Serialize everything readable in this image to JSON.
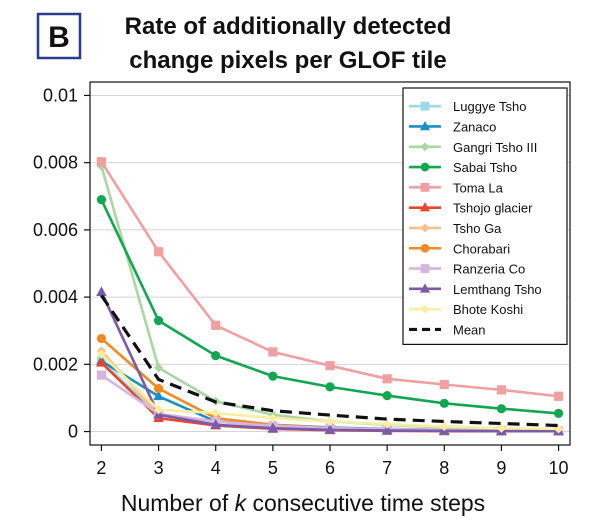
{
  "panel_label": "B",
  "chart_data": {
    "type": "line",
    "title": [
      "Rate of additionally detected",
      "change pixels per GLOF tile"
    ],
    "xlabel_parts": [
      "Number of ",
      "k",
      " consecutive time steps"
    ],
    "ylabel": "",
    "x": [
      2,
      3,
      4,
      5,
      6,
      7,
      8,
      9,
      10
    ],
    "xlim": [
      1.8,
      10.2
    ],
    "ylim": [
      -0.0004,
      0.0104
    ],
    "y_ticks": [
      0,
      0.002,
      0.004,
      0.006,
      0.008,
      0.01
    ],
    "y_tick_labels": [
      "0",
      "0.002",
      "0.004",
      "0.006",
      "0.008",
      "0.01"
    ],
    "x_tick_labels": [
      "2",
      "3",
      "4",
      "5",
      "6",
      "7",
      "8",
      "9",
      "10"
    ],
    "grid": "horizontal",
    "legend_position": "top-right",
    "series": [
      {
        "name": "Luggye Tsho",
        "color": "#9ed9e8",
        "marker": "square",
        "dashed": false,
        "values": [
          0.0021,
          0.0005,
          0.0002,
          0.0001,
          6e-05,
          4e-05,
          2e-05,
          1e-05,
          1e-05
        ]
      },
      {
        "name": "Zanaco",
        "color": "#1a8fc6",
        "marker": "triangle",
        "dashed": false,
        "values": [
          0.0021,
          0.00105,
          0.0003,
          0.0002,
          0.00012,
          8e-05,
          5e-05,
          3e-05,
          2e-05
        ]
      },
      {
        "name": "Gangri Tsho III",
        "color": "#a8d8a0",
        "marker": "diamond",
        "dashed": false,
        "values": [
          0.0079,
          0.0019,
          0.0009,
          0.0005,
          0.0003,
          0.0002,
          0.00012,
          8e-05,
          5e-05
        ]
      },
      {
        "name": "Sabai Tsho",
        "color": "#13a651",
        "marker": "circle",
        "dashed": false,
        "values": [
          0.0069,
          0.0033,
          0.00226,
          0.00165,
          0.00133,
          0.00107,
          0.00084,
          0.00068,
          0.00054
        ]
      },
      {
        "name": "Toma La",
        "color": "#f0a0a0",
        "marker": "square",
        "dashed": false,
        "values": [
          0.00803,
          0.00535,
          0.00316,
          0.00237,
          0.00196,
          0.00157,
          0.0014,
          0.00124,
          0.00105
        ]
      },
      {
        "name": "Tshojo glacier",
        "color": "#e8452c",
        "marker": "triangle",
        "dashed": false,
        "values": [
          0.00205,
          0.0004,
          0.00018,
          8e-05,
          4e-05,
          2e-05,
          1e-05,
          1e-05,
          1e-05
        ]
      },
      {
        "name": "Tsho Ga",
        "color": "#f5c08a",
        "marker": "diamond",
        "dashed": false,
        "values": [
          0.0024,
          0.0005,
          0.0003,
          0.00015,
          0.0001,
          6e-05,
          4e-05,
          2e-05,
          1e-05
        ]
      },
      {
        "name": "Chorabari",
        "color": "#f08a24",
        "marker": "circle",
        "dashed": false,
        "values": [
          0.00277,
          0.00128,
          0.0004,
          0.0002,
          0.0001,
          5e-05,
          3e-05,
          2e-05,
          1e-05
        ]
      },
      {
        "name": "Ranzeria Co",
        "color": "#d4b4e0",
        "marker": "square",
        "dashed": false,
        "values": [
          0.00168,
          0.00053,
          0.0003,
          0.00017,
          0.0001,
          7e-05,
          5e-05,
          3e-05,
          2e-05
        ]
      },
      {
        "name": "Lemthang Tsho",
        "color": "#7b5aa8",
        "marker": "triangle",
        "dashed": false,
        "values": [
          0.00415,
          0.0005,
          0.0002,
          0.0001,
          5e-05,
          3e-05,
          2e-05,
          1e-05,
          1e-05
        ]
      },
      {
        "name": "Bhote Koshi",
        "color": "#f7eea0",
        "marker": "diamond",
        "dashed": false,
        "values": [
          0.0023,
          0.00065,
          0.00055,
          0.0004,
          0.0003,
          0.00022,
          0.00015,
          0.0001,
          8e-05
        ]
      },
      {
        "name": "Mean",
        "color": "#111111",
        "marker": "none",
        "dashed": true,
        "values": [
          0.00405,
          0.00155,
          0.00088,
          0.00062,
          0.00049,
          0.00037,
          0.0003,
          0.00024,
          0.00018
        ]
      }
    ]
  }
}
